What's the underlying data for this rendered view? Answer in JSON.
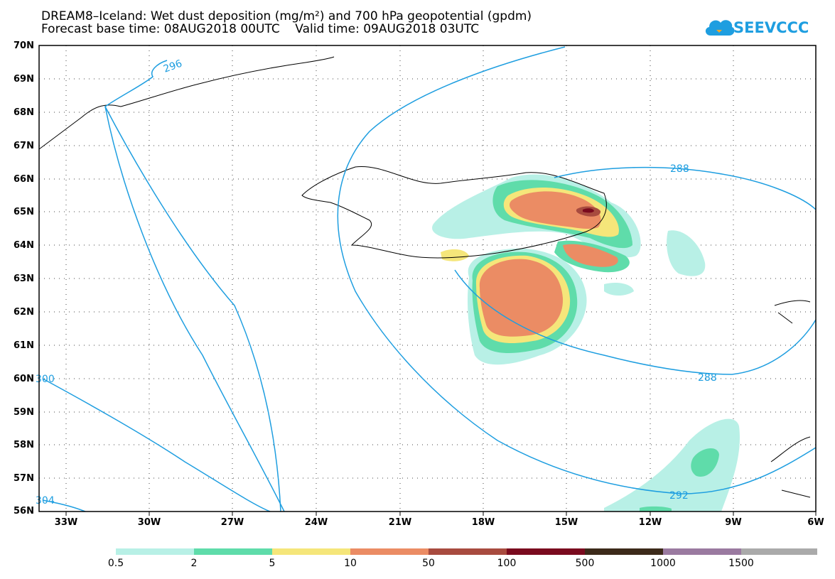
{
  "header": {
    "title_line1": "DREAM8–Iceland: Wet dust deposition (mg/m²) and 700 hPa geopotential (gpdm)",
    "title_line2": "Forecast base time: 08AUG2018 00UTC    Valid time: 09AUG2018 03UTC",
    "logo_text": "SEEVCCC"
  },
  "map": {
    "lat_labels": [
      "70N",
      "69N",
      "68N",
      "67N",
      "66N",
      "65N",
      "64N",
      "63N",
      "62N",
      "61N",
      "60N",
      "59N",
      "58N",
      "57N",
      "56N"
    ],
    "lon_labels": [
      "33W",
      "30W",
      "27W",
      "24W",
      "21W",
      "18W",
      "15W",
      "12W",
      "9W",
      "6W"
    ],
    "contour_labels": [
      "296",
      "288",
      "288",
      "292",
      "300",
      "304"
    ],
    "contour_color": "#1e9ee0"
  },
  "colorbar": {
    "labels": [
      "0.5",
      "2",
      "5",
      "10",
      "50",
      "100",
      "500",
      "1000",
      "1500"
    ],
    "colors": [
      "#b8f0e6",
      "#5fdcaa",
      "#f5e67a",
      "#eb8c64",
      "#a84b3f",
      "#7a0a1e",
      "#3c2a1a",
      "#9a7aa0",
      "#aaaaaa"
    ]
  }
}
